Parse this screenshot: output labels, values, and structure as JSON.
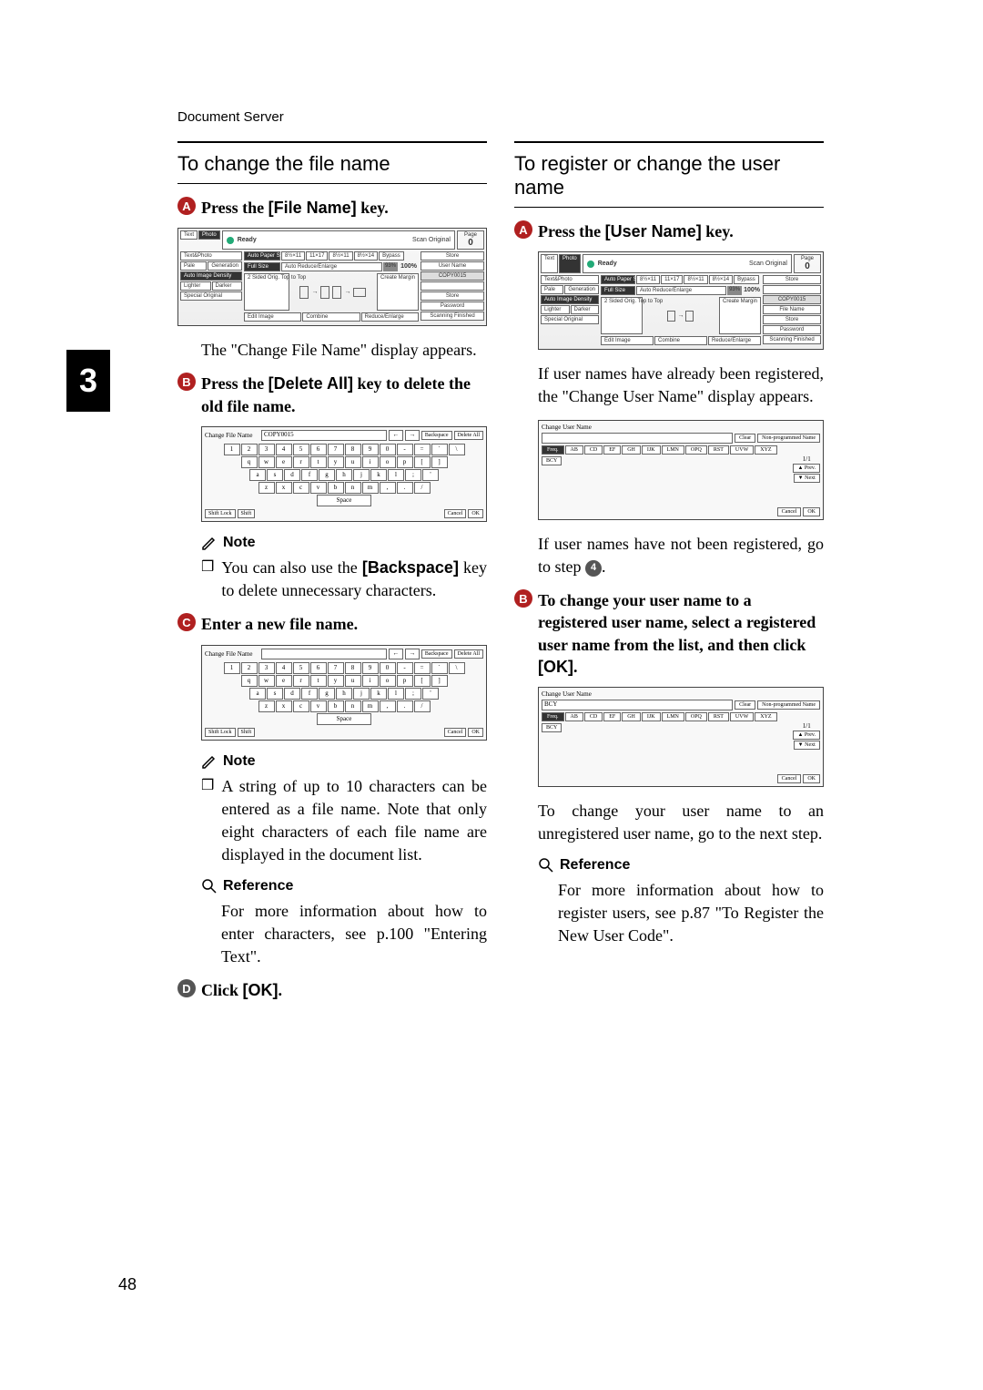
{
  "header": "Document Server",
  "chapter": "3",
  "pageNumber": "48",
  "left": {
    "title": "To change the file name",
    "step1": {
      "prefix": "Press the ",
      "key": "[File Name]",
      "suffix": " key."
    },
    "afterStep1": "The \"Change File Name\" display appears.",
    "step2": {
      "prefix": "Press the ",
      "key": "[Delete All]",
      "suffix": " key to delete the old file name."
    },
    "note1Label": "Note",
    "note1Item": {
      "prefix": "You can also use the ",
      "key": "[Backspace]",
      "suffix": " key to delete unnecessary characters."
    },
    "step3": "Enter a new file name.",
    "note2Label": "Note",
    "note2Item": "A string of up to 10 characters can be entered as a file name. Note that only eight characters of each file name are displayed in the document list.",
    "refLabel": "Reference",
    "refText": "For more information about how to enter characters, see p.100 \"Entering Text\".",
    "step4": {
      "prefix": "Click ",
      "key": "[OK]",
      "suffix": "."
    }
  },
  "right": {
    "title": "To register or change the user name",
    "step1": {
      "prefix": "Press the ",
      "key": "[User Name]",
      "suffix": " key."
    },
    "afterStep1": "If user names have already been registered, the \"Change User Name\" display appears.",
    "afterScreenshot2": {
      "prefix": "If user names have not been registered, go to step ",
      "stepRef": "4",
      "suffix": "."
    },
    "step2": {
      "text": "To change your user name to a registered user name, select a registered user name from the list, and then click ",
      "key": "[OK]",
      "suffix": "."
    },
    "afterStep2": "To change your user name to an unregistered user name, go to the next step.",
    "refLabel": "Reference",
    "refText": "For more information about how to register users, see p.87 \"To Register the New User Code\"."
  },
  "copierScreen": {
    "ready": "Ready",
    "scanOriginal": "Scan Original",
    "pageLabel": "Page",
    "pageValue": "0",
    "tabs": {
      "text": "Text",
      "photo": "Photo",
      "textPhoto": "Text&Photo",
      "pale": "Pale",
      "generation": "Generation"
    },
    "autoPaper": "Auto Paper Select",
    "autoReduce": "Auto Reduce/Enlarge",
    "fullSize": "Full Size",
    "autoDensity": "Auto Image Density",
    "lighter": "Lighter",
    "darker": "Darker",
    "specialOrig": "Special Original",
    "sided": "2 Sided Orig. Top to Top",
    "editImage": "Edit Image",
    "combine": "Combine",
    "reduceEnlarge": "Reduce/Enlarge",
    "createMargin": "Create Margin",
    "ratio": "93%",
    "pct": "100%",
    "sizes": [
      "8½×11",
      "11×17",
      "8½×11",
      "8½×14"
    ],
    "bypass": "Bypass",
    "rightBtns": {
      "store": "Store",
      "userName": "User Name",
      "fileName": "File Name",
      "fileNameValue": "COPY0015",
      "password": "Password",
      "scanFinished": "Scanning Finished"
    }
  },
  "keyboardScreen": {
    "title": "Change File Name",
    "fieldValue": "COPY0015",
    "backspace": "Backspace",
    "deleteAll": "Delete All",
    "shiftLock": "Shift Lock",
    "shift": "Shift",
    "space": "Space",
    "cancel": "Cancel",
    "ok": "OK",
    "row1": [
      "1",
      "2",
      "3",
      "4",
      "5",
      "6",
      "7",
      "8",
      "9",
      "0",
      "-",
      "=",
      "`",
      "\\"
    ],
    "row2": [
      "q",
      "w",
      "e",
      "r",
      "t",
      "y",
      "u",
      "i",
      "o",
      "p",
      "[",
      "]"
    ],
    "row3": [
      "a",
      "s",
      "d",
      "f",
      "g",
      "h",
      "j",
      "k",
      "l",
      ";",
      "'"
    ],
    "row4": [
      "z",
      "x",
      "c",
      "v",
      "b",
      "n",
      "m",
      ",",
      ".",
      "/"
    ]
  },
  "userNameScreen": {
    "title": "Change User Name",
    "clear": "Clear",
    "nonProgrammed": "Non-programmed Name",
    "tabs": [
      "Freq.",
      "AB",
      "CD",
      "EF",
      "GH",
      "IJK",
      "LMN",
      "OPQ",
      "RST",
      "UVW",
      "XYZ"
    ],
    "bcy": "BCY",
    "pageNav": "1/1",
    "prev": "▲ Prev.",
    "next": "▼ Next",
    "cancel": "Cancel",
    "ok": "OK"
  }
}
